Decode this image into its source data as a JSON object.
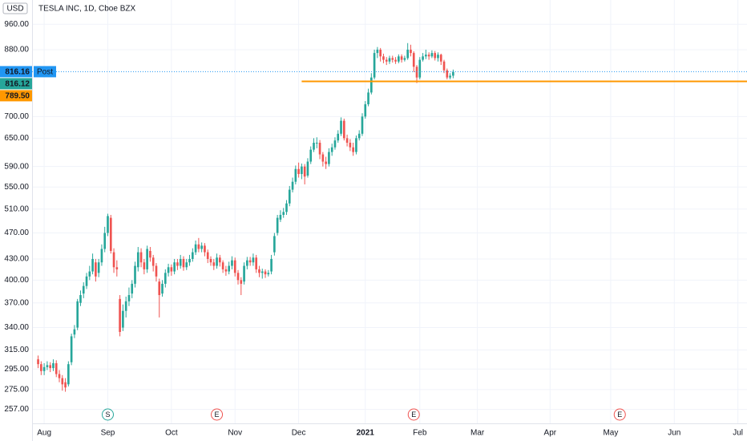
{
  "chart_data": {
    "type": "candlestick",
    "title": "TESLA INC, 1D, Cboe BZX",
    "currency": "USD",
    "log_scale": true,
    "grid": true,
    "up_color": "#26a69a",
    "down_color": "#ef5350",
    "ylim": [
      245,
      1043
    ],
    "yticks": [
      {
        "value": 257,
        "label": "257.00"
      },
      {
        "value": 275,
        "label": "275.00"
      },
      {
        "value": 295,
        "label": "295.00"
      },
      {
        "value": 315,
        "label": "315.00"
      },
      {
        "value": 340,
        "label": "340.00"
      },
      {
        "value": 370,
        "label": "370.00"
      },
      {
        "value": 400,
        "label": "400.00"
      },
      {
        "value": 430,
        "label": "430.00"
      },
      {
        "value": 470,
        "label": "470.00"
      },
      {
        "value": 510,
        "label": "510.00"
      },
      {
        "value": 550,
        "label": "550.00"
      },
      {
        "value": 590,
        "label": "590.00"
      },
      {
        "value": 650,
        "label": "650.00"
      },
      {
        "value": 700,
        "label": "700.00"
      },
      {
        "value": 880,
        "label": "880.00"
      },
      {
        "value": 960,
        "label": "960.00"
      }
    ],
    "xlim": [
      -2,
      234
    ],
    "xticks": [
      {
        "value": 2,
        "label": "Aug"
      },
      {
        "value": 23,
        "label": "Sep"
      },
      {
        "value": 44,
        "label": "Oct"
      },
      {
        "value": 65,
        "label": "Nov"
      },
      {
        "value": 86,
        "label": "Dec"
      },
      {
        "value": 108,
        "label": "2021",
        "bold": true
      },
      {
        "value": 126,
        "label": "Feb"
      },
      {
        "value": 145,
        "label": "Mar"
      },
      {
        "value": 169,
        "label": "Apr"
      },
      {
        "value": 189,
        "label": "May"
      },
      {
        "value": 210,
        "label": "Jun"
      },
      {
        "value": 231,
        "label": "Jul"
      }
    ],
    "open": [
      305,
      300,
      293,
      297,
      299,
      296,
      301,
      290,
      286,
      282,
      280,
      302,
      332,
      340,
      370,
      382,
      392,
      405,
      412,
      425,
      410,
      425,
      445,
      470,
      495,
      440,
      418,
      375,
      340,
      360,
      372,
      382,
      395,
      418,
      440,
      425,
      415,
      442,
      432,
      420,
      398,
      382,
      395,
      410,
      418,
      412,
      425,
      420,
      430,
      418,
      425,
      430,
      440,
      452,
      445,
      450,
      440,
      430,
      425,
      420,
      432,
      425,
      415,
      412,
      420,
      428,
      410,
      400,
      398,
      420,
      428,
      425,
      432,
      415,
      410,
      412,
      408,
      412,
      440,
      470,
      492,
      500,
      505,
      520,
      545,
      560,
      585,
      575,
      590,
      572,
      600,
      625,
      640,
      640,
      615,
      600,
      595,
      620,
      630,
      645,
      660,
      690,
      650,
      640,
      630,
      620,
      650,
      660,
      700,
      730,
      760,
      800,
      870,
      880,
      860,
      850,
      845,
      855,
      850,
      845,
      860,
      850,
      855,
      880,
      870,
      830,
      800,
      850,
      860,
      865,
      860,
      870,
      855,
      865,
      845,
      820,
      800,
      805
    ],
    "high": [
      309,
      303,
      301,
      303,
      302,
      305,
      304,
      294,
      289,
      286,
      303,
      333,
      343,
      375,
      386,
      397,
      410,
      420,
      438,
      430,
      430,
      452,
      480,
      502,
      500,
      446,
      428,
      380,
      368,
      378,
      390,
      400,
      426,
      448,
      446,
      430,
      450,
      448,
      436,
      424,
      402,
      400,
      415,
      423,
      422,
      430,
      430,
      436,
      434,
      430,
      436,
      446,
      458,
      462,
      455,
      454,
      444,
      434,
      430,
      438,
      436,
      428,
      420,
      426,
      434,
      432,
      414,
      404,
      425,
      433,
      433,
      438,
      436,
      420,
      416,
      415,
      414,
      436,
      470,
      500,
      508,
      512,
      526,
      552,
      568,
      592,
      598,
      596,
      595,
      607,
      632,
      650,
      652,
      646,
      620,
      610,
      628,
      638,
      652,
      668,
      698,
      695,
      658,
      648,
      640,
      656,
      668,
      708,
      738,
      770,
      812,
      880,
      888,
      885,
      868,
      858,
      862,
      862,
      858,
      866,
      866,
      862,
      900,
      895,
      875,
      835,
      858,
      870,
      880,
      872,
      878,
      876,
      872,
      868,
      850,
      825,
      812,
      822
    ],
    "low": [
      296,
      289,
      289,
      294,
      292,
      293,
      287,
      282,
      274,
      273,
      278,
      299,
      328,
      337,
      366,
      376,
      388,
      400,
      408,
      398,
      404,
      420,
      440,
      465,
      438,
      410,
      405,
      330,
      336,
      352,
      366,
      376,
      390,
      412,
      418,
      408,
      410,
      426,
      412,
      398,
      352,
      378,
      390,
      405,
      406,
      408,
      414,
      416,
      413,
      414,
      420,
      426,
      436,
      440,
      440,
      434,
      424,
      420,
      414,
      416,
      419,
      410,
      406,
      408,
      415,
      405,
      394,
      380,
      394,
      415,
      420,
      420,
      410,
      404,
      402,
      403,
      405,
      408,
      435,
      466,
      488,
      495,
      500,
      515,
      540,
      555,
      568,
      565,
      555,
      568,
      595,
      620,
      628,
      605,
      590,
      585,
      590,
      612,
      625,
      640,
      655,
      645,
      632,
      622,
      612,
      615,
      645,
      655,
      695,
      725,
      755,
      795,
      855,
      845,
      840,
      835,
      838,
      842,
      838,
      840,
      842,
      845,
      850,
      860,
      815,
      785,
      795,
      845,
      852,
      850,
      855,
      848,
      845,
      835,
      812,
      795,
      795,
      798
    ],
    "close": [
      300,
      293,
      297,
      299,
      296,
      301,
      290,
      286,
      280,
      277,
      300,
      330,
      338,
      372,
      380,
      392,
      405,
      412,
      430,
      405,
      425,
      445,
      470,
      498,
      442,
      418,
      415,
      335,
      360,
      372,
      380,
      395,
      420,
      440,
      425,
      415,
      445,
      432,
      420,
      405,
      380,
      395,
      410,
      418,
      412,
      425,
      420,
      430,
      418,
      425,
      430,
      440,
      452,
      445,
      450,
      440,
      430,
      425,
      420,
      432,
      425,
      415,
      412,
      420,
      428,
      410,
      400,
      395,
      420,
      428,
      425,
      432,
      415,
      410,
      412,
      408,
      410,
      430,
      465,
      495,
      500,
      505,
      520,
      545,
      560,
      585,
      575,
      590,
      570,
      600,
      625,
      640,
      640,
      615,
      600,
      595,
      620,
      630,
      645,
      660,
      690,
      650,
      640,
      630,
      620,
      650,
      660,
      700,
      730,
      760,
      800,
      870,
      880,
      860,
      850,
      845,
      855,
      850,
      845,
      860,
      850,
      855,
      880,
      870,
      830,
      800,
      850,
      860,
      865,
      860,
      870,
      855,
      865,
      845,
      820,
      800,
      805,
      816
    ],
    "markers": [
      {
        "label": "S",
        "x": 23,
        "color": "#26a69a"
      },
      {
        "label": "E",
        "x": 59,
        "color": "#ef5350"
      },
      {
        "label": "E",
        "x": 124,
        "color": "#ef5350"
      },
      {
        "label": "E",
        "x": 192,
        "color": "#ef5350"
      }
    ],
    "price_lines": [
      {
        "value": 816.16,
        "tag": "Post",
        "color": "#2196f3",
        "style": "dotted"
      },
      {
        "value": 816.12,
        "color": "#26a69a",
        "style": "none"
      },
      {
        "value": 789.5,
        "label": "789.50",
        "color": "#ff9800",
        "style": "solid",
        "from_x": 87
      }
    ]
  }
}
